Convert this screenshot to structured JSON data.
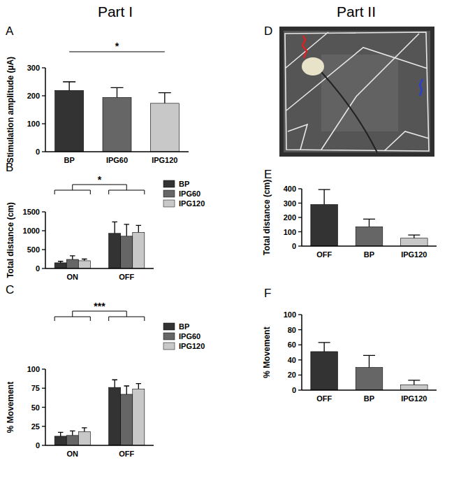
{
  "headers": [
    "Part I",
    "Part II"
  ],
  "chart_data": [
    {
      "type": "bar",
      "title": "A",
      "y_label": "Stimulation amplitude (µA)",
      "categories": [
        "BP",
        "IPG60",
        "IPG120"
      ],
      "values": [
        219,
        194,
        173
      ],
      "errors": [
        31,
        35,
        38
      ],
      "colors": [
        "#333333",
        "#666666",
        "#c8c8c8"
      ],
      "ylim": [
        0,
        300
      ],
      "yticks": [
        0,
        100,
        200,
        300
      ],
      "annotations": [
        "*"
      ]
    },
    {
      "type": "bar",
      "title": "B",
      "y_label": "Total distance (cm)",
      "categories": [
        "ON",
        "OFF"
      ],
      "series": [
        {
          "name": "BP",
          "color": "#333333",
          "values": [
            150,
            930
          ],
          "errors": [
            40,
            305
          ]
        },
        {
          "name": "IPG60",
          "color": "#666666",
          "values": [
            240,
            855
          ],
          "errors": [
            95,
            315
          ]
        },
        {
          "name": "IPG120",
          "color": "#c8c8c8",
          "values": [
            205,
            955
          ],
          "errors": [
            45,
            185
          ]
        }
      ],
      "ylim": [
        0,
        1500
      ],
      "yticks": [
        0,
        500,
        1000,
        1500
      ],
      "legend": "right",
      "annotations": [
        "*"
      ]
    },
    {
      "type": "bar",
      "title": "C",
      "y_label": "% Movement",
      "categories": [
        "ON",
        "OFF"
      ],
      "series": [
        {
          "name": "BP",
          "color": "#333333",
          "values": [
            12,
            76
          ],
          "errors": [
            5,
            10
          ]
        },
        {
          "name": "IPG60",
          "color": "#666666",
          "values": [
            13,
            67
          ],
          "errors": [
            6,
            11
          ]
        },
        {
          "name": "IPG120",
          "color": "#c8c8c8",
          "values": [
            18,
            74
          ],
          "errors": [
            5,
            7
          ]
        }
      ],
      "ylim": [
        0,
        100
      ],
      "yticks": [
        0,
        25,
        50,
        75,
        100
      ],
      "legend": "right",
      "annotations": [
        "***"
      ]
    },
    {
      "type": "image",
      "title": "D"
    },
    {
      "type": "bar",
      "title": "E",
      "y_label": "Total distance (cm)",
      "categories": [
        "OFF",
        "BP",
        "IPG120"
      ],
      "values": [
        290,
        135,
        55
      ],
      "errors": [
        105,
        53,
        22
      ],
      "colors": [
        "#333333",
        "#666666",
        "#c8c8c8"
      ],
      "ylim": [
        0,
        400
      ],
      "yticks": [
        0,
        100,
        200,
        300,
        400
      ]
    },
    {
      "type": "bar",
      "title": "F",
      "y_label": "% Movement",
      "categories": [
        "OFF",
        "BP",
        "IPG120"
      ],
      "values": [
        51,
        30,
        7
      ],
      "errors": [
        12,
        16,
        6
      ],
      "colors": [
        "#333333",
        "#666666",
        "#c8c8c8"
      ],
      "ylim": [
        0,
        100
      ],
      "yticks": [
        0,
        20,
        40,
        60,
        80,
        100
      ]
    }
  ]
}
